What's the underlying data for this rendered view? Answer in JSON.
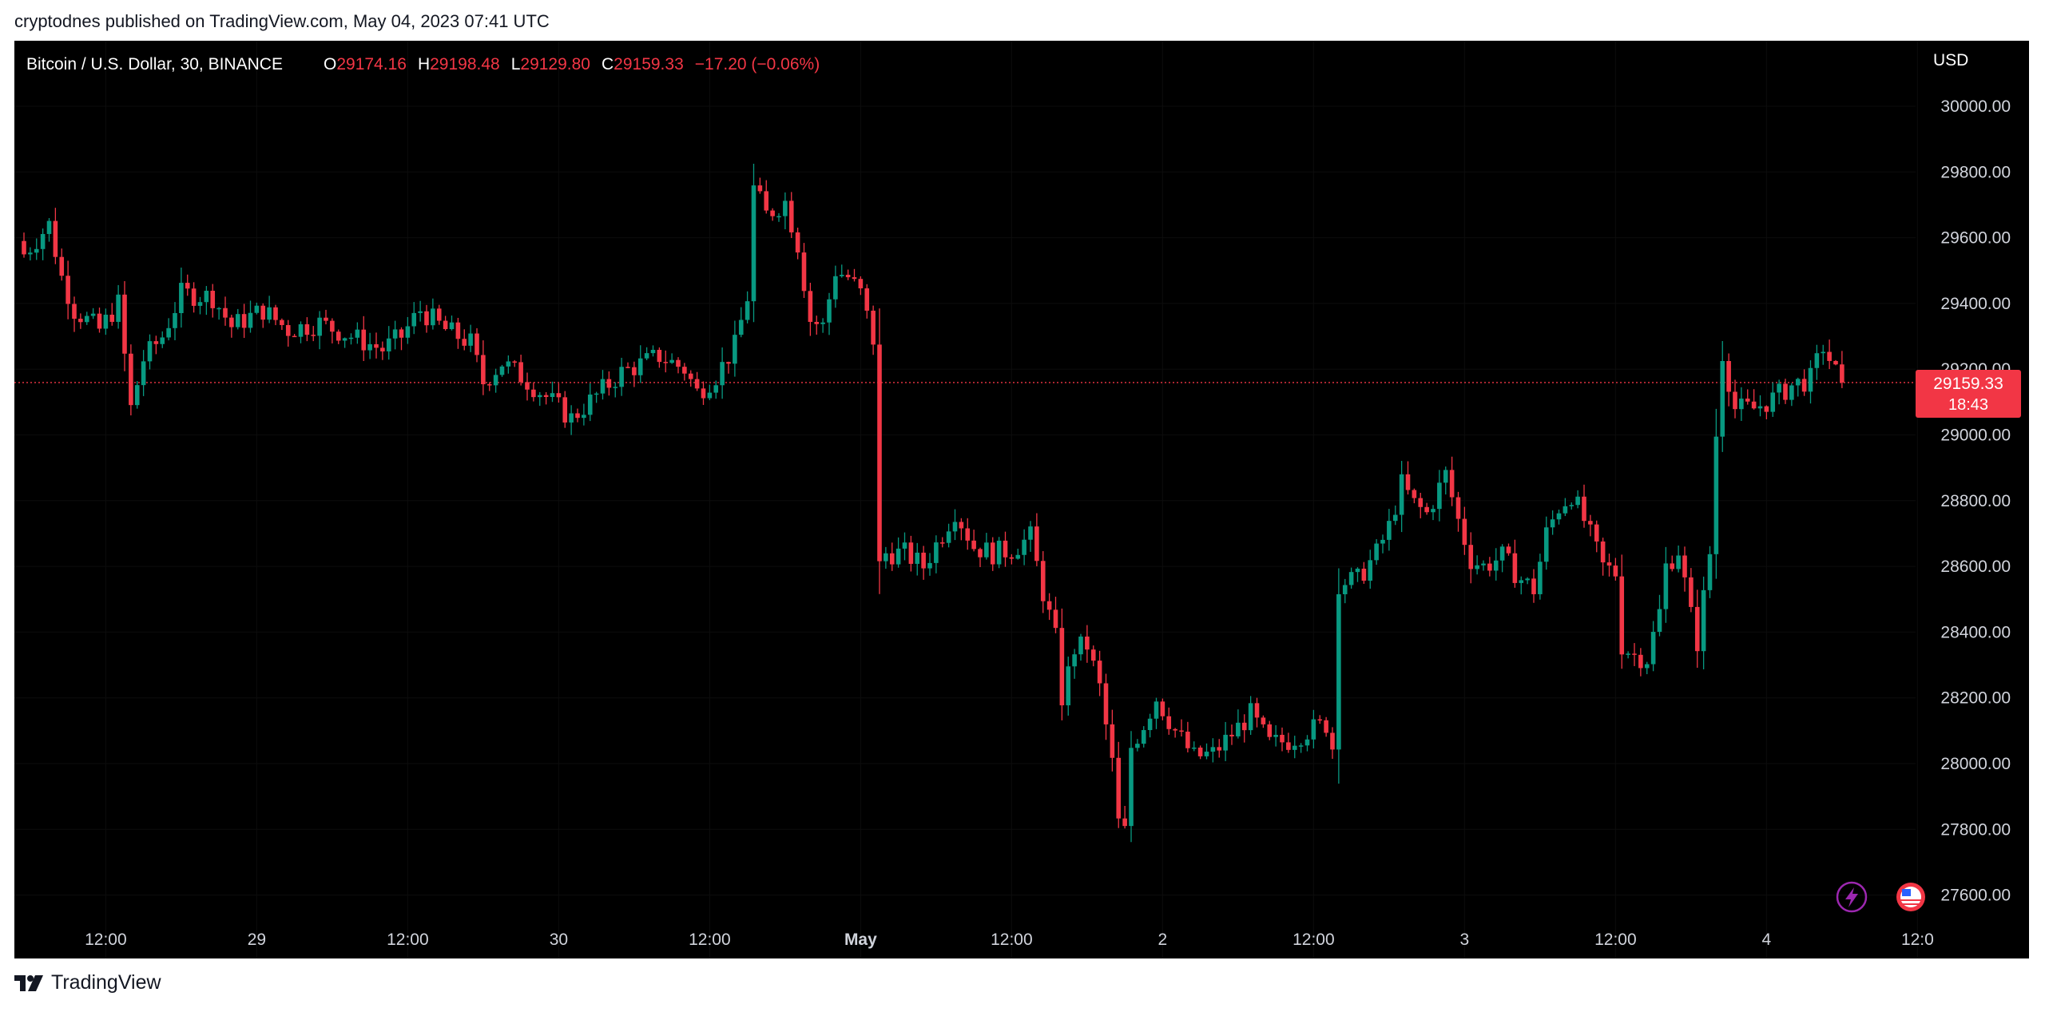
{
  "publisher_line": "cryptodnes published on TradingView.com, May 04, 2023 07:41 UTC",
  "footer": {
    "brand": "TradingView",
    "logo_icon": "tradingview-logo-icon"
  },
  "header": {
    "symbol": "Bitcoin / U.S. Dollar, 30, BINANCE",
    "open_label": "O",
    "open_value": "29174.16",
    "high_label": "H",
    "high_value": "29198.48",
    "low_label": "L",
    "low_value": "29129.80",
    "close_label": "C",
    "close_value": "29159.33",
    "change": "−17.20 (−0.06%)"
  },
  "currency_label": "USD",
  "price_tag": {
    "price": "29159.33",
    "countdown": "18:43"
  },
  "icons": [
    "lightning-icon",
    "flag-icon"
  ],
  "colors": {
    "up": "#089981",
    "down": "#f23645",
    "background": "#000000",
    "axis_text": "#d1d4dc",
    "text_dark": "#131722"
  },
  "chart_data": {
    "type": "candlestick",
    "symbol": "BTCUSD",
    "interval_minutes": 30,
    "ylim": [
      27500,
      30250
    ],
    "y_ticks": [
      30000,
      29800,
      29600,
      29400,
      29200,
      29000,
      28800,
      28600,
      28400,
      28200,
      28000,
      27800,
      27600
    ],
    "y_tick_labels": [
      "30000.00",
      "29800.00",
      "29600.00",
      "29400.00",
      "29200.00",
      "29000.00",
      "28800.00",
      "28600.00",
      "28400.00",
      "28200.00",
      "28000.00",
      "27800.00",
      "27600.00"
    ],
    "x_ticks": [
      {
        "label": "12:00",
        "bar": 13,
        "bold": false
      },
      {
        "label": "29",
        "bar": 37,
        "bold": false
      },
      {
        "label": "12:00",
        "bar": 61,
        "bold": false
      },
      {
        "label": "30",
        "bar": 85,
        "bold": false
      },
      {
        "label": "12:00",
        "bar": 109,
        "bold": false
      },
      {
        "label": "May",
        "bar": 133,
        "bold": true
      },
      {
        "label": "12:00",
        "bar": 157,
        "bold": false
      },
      {
        "label": "2",
        "bar": 181,
        "bold": false
      },
      {
        "label": "12:00",
        "bar": 205,
        "bold": false
      },
      {
        "label": "3",
        "bar": 229,
        "bold": false
      },
      {
        "label": "12:00",
        "bar": 253,
        "bold": false
      },
      {
        "label": "4",
        "bar": 277,
        "bold": false
      },
      {
        "label": "12:0",
        "bar": 301,
        "bold": false
      }
    ],
    "last_price": 29159.33,
    "anchors": [
      [
        0,
        29550
      ],
      [
        4,
        29640
      ],
      [
        6,
        29480
      ],
      [
        8,
        29380
      ],
      [
        12,
        29320
      ],
      [
        15,
        29400
      ],
      [
        17,
        29080
      ],
      [
        19,
        29230
      ],
      [
        22,
        29300
      ],
      [
        25,
        29430
      ],
      [
        30,
        29420
      ],
      [
        33,
        29330
      ],
      [
        38,
        29380
      ],
      [
        42,
        29320
      ],
      [
        47,
        29340
      ],
      [
        52,
        29300
      ],
      [
        57,
        29260
      ],
      [
        60,
        29300
      ],
      [
        63,
        29380
      ],
      [
        67,
        29320
      ],
      [
        71,
        29280
      ],
      [
        73,
        29160
      ],
      [
        76,
        29220
      ],
      [
        79,
        29180
      ],
      [
        84,
        29100
      ],
      [
        87,
        29050
      ],
      [
        91,
        29120
      ],
      [
        95,
        29190
      ],
      [
        101,
        29240
      ],
      [
        105,
        29200
      ],
      [
        107,
        29130
      ],
      [
        110,
        29180
      ],
      [
        113,
        29270
      ],
      [
        115,
        29420
      ],
      [
        116,
        29750
      ],
      [
        118,
        29670
      ],
      [
        121,
        29710
      ],
      [
        123,
        29580
      ],
      [
        125,
        29350
      ],
      [
        127,
        29330
      ],
      [
        129,
        29500
      ],
      [
        131,
        29480
      ],
      [
        133,
        29430
      ],
      [
        135,
        29290
      ],
      [
        136,
        28600
      ],
      [
        137,
        28640
      ],
      [
        140,
        28640
      ],
      [
        143,
        28600
      ],
      [
        146,
        28700
      ],
      [
        148,
        28770
      ],
      [
        151,
        28660
      ],
      [
        154,
        28640
      ],
      [
        157,
        28650
      ],
      [
        160,
        28690
      ],
      [
        162,
        28520
      ],
      [
        164,
        28380
      ],
      [
        165,
        28200
      ],
      [
        167,
        28350
      ],
      [
        169,
        28360
      ],
      [
        171,
        28230
      ],
      [
        173,
        28000
      ],
      [
        174,
        27820
      ],
      [
        175,
        27790
      ],
      [
        176,
        28050
      ],
      [
        178,
        28120
      ],
      [
        180,
        28200
      ],
      [
        183,
        28100
      ],
      [
        186,
        28020
      ],
      [
        189,
        28030
      ],
      [
        192,
        28090
      ],
      [
        195,
        28150
      ],
      [
        198,
        28060
      ],
      [
        201,
        28070
      ],
      [
        204,
        28100
      ],
      [
        207,
        28120
      ],
      [
        208,
        28050
      ],
      [
        209,
        28550
      ],
      [
        212,
        28560
      ],
      [
        215,
        28640
      ],
      [
        217,
        28720
      ],
      [
        219,
        28850
      ],
      [
        221,
        28790
      ],
      [
        223,
        28760
      ],
      [
        226,
        28880
      ],
      [
        228,
        28740
      ],
      [
        230,
        28620
      ],
      [
        232,
        28600
      ],
      [
        235,
        28630
      ],
      [
        238,
        28560
      ],
      [
        240,
        28530
      ],
      [
        242,
        28700
      ],
      [
        244,
        28780
      ],
      [
        246,
        28820
      ],
      [
        248,
        28740
      ],
      [
        251,
        28600
      ],
      [
        253,
        28580
      ],
      [
        254,
        28360
      ],
      [
        256,
        28330
      ],
      [
        258,
        28320
      ],
      [
        260,
        28460
      ],
      [
        261,
        28600
      ],
      [
        263,
        28650
      ],
      [
        265,
        28450
      ],
      [
        266,
        28370
      ],
      [
        268,
        28640
      ],
      [
        269,
        29000
      ],
      [
        270,
        29250
      ],
      [
        272,
        29080
      ],
      [
        275,
        29080
      ],
      [
        278,
        29110
      ],
      [
        281,
        29150
      ],
      [
        284,
        29170
      ],
      [
        286,
        29270
      ],
      [
        288,
        29190
      ],
      [
        289,
        29159.33
      ]
    ]
  }
}
